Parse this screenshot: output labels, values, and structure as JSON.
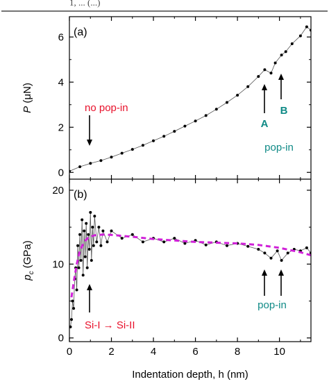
{
  "caption_fragment": "1, ... (...)",
  "colors": {
    "marker": "#000000",
    "red_label": "#e8102a",
    "teal_label": "#0f8a86",
    "fit_line": "#d020d8",
    "axis": "#000000"
  },
  "x_axis": {
    "label": "Indentation depth, h (nm)",
    "tick_labels": [
      "0",
      "2",
      "4",
      "6",
      "8",
      "10"
    ]
  },
  "chart_data": [
    {
      "type": "scatter",
      "panel_label": "(a)",
      "ylabel": "P (μN)",
      "xlim": [
        0,
        11.5
      ],
      "ylim": [
        -0.3,
        6.9
      ],
      "x_ticks": [
        0,
        2,
        4,
        6,
        8,
        10
      ],
      "y_ticks": [
        0,
        2,
        4,
        6
      ],
      "y_tick_labels": [
        "0",
        "2",
        "4",
        "6"
      ],
      "series": [
        {
          "x": [
            0,
            0.5,
            1,
            1.5,
            2,
            2.5,
            3,
            3.5,
            4,
            4.5,
            5,
            5.5,
            6,
            6.5,
            7,
            7.5,
            8,
            8.5,
            9,
            9.3,
            9.6,
            9.8,
            10.1,
            10.3,
            10.6,
            11,
            11.3,
            11.5
          ],
          "y": [
            0.05,
            0.25,
            0.4,
            0.52,
            0.68,
            0.85,
            1.02,
            1.2,
            1.4,
            1.6,
            1.82,
            2.05,
            2.28,
            2.52,
            2.8,
            3.1,
            3.42,
            3.8,
            4.25,
            4.55,
            4.4,
            4.85,
            5.2,
            5.35,
            5.7,
            6.05,
            6.45,
            6.3
          ]
        }
      ],
      "annotations": [
        {
          "text": "no pop-in",
          "x": 1.0,
          "y": 0.7,
          "color": "red"
        },
        {
          "text": "A",
          "x": 9.3,
          "y": 4.3,
          "color": "teal"
        },
        {
          "text": "B",
          "x": 10.1,
          "y": 5.0,
          "color": "teal"
        },
        {
          "text": "pop-in",
          "color": "teal"
        }
      ]
    },
    {
      "type": "line",
      "panel_label": "(b)",
      "ylabel": "p_c (GPa)",
      "xlim": [
        0,
        11.5
      ],
      "ylim": [
        -0.5,
        21.5
      ],
      "x_ticks": [
        0,
        2,
        4,
        6,
        8,
        10
      ],
      "y_ticks": [
        0,
        10,
        20
      ],
      "y_tick_labels": [
        "0",
        "10",
        "20"
      ],
      "series": [
        {
          "x": [
            0.05,
            0.1,
            0.15,
            0.2,
            0.25,
            0.3,
            0.35,
            0.4,
            0.45,
            0.5,
            0.55,
            0.6,
            0.65,
            0.7,
            0.75,
            0.8,
            0.85,
            0.9,
            0.95,
            1.0,
            1.05,
            1.1,
            1.15,
            1.2,
            1.3,
            1.4,
            1.5,
            1.6,
            1.8,
            2.0,
            2.5,
            3.0,
            3.5,
            4.0,
            4.5,
            5.0,
            5.5,
            6.0,
            6.5,
            7.0,
            7.5,
            8.0,
            8.5,
            9.0,
            9.3,
            9.6,
            9.9,
            10.1,
            10.4,
            10.7,
            11.0,
            11.3,
            11.5
          ],
          "y": [
            1.5,
            2.5,
            5.0,
            4.0,
            8.0,
            9.5,
            6.5,
            12.5,
            9.5,
            14.0,
            10.5,
            16.0,
            8.5,
            14.5,
            11.0,
            15.5,
            9.5,
            14.0,
            12.0,
            17.0,
            10.5,
            15.0,
            12.5,
            16.5,
            13.0,
            15.0,
            12.5,
            14.5,
            13.0,
            14.5,
            13.5,
            14.0,
            13.0,
            13.5,
            13.0,
            13.5,
            12.8,
            13.2,
            12.6,
            13.0,
            12.5,
            12.8,
            12.4,
            12.0,
            11.5,
            10.8,
            11.8,
            10.5,
            11.5,
            12.0,
            11.8,
            12.2,
            11.5
          ]
        },
        {
          "name": "fit",
          "x": [
            0.1,
            0.2,
            0.35,
            0.5,
            0.7,
            0.9,
            1.2,
            1.6,
            2.0,
            3.0,
            4.0,
            5.0,
            6.0,
            7.0,
            8.0,
            9.0,
            10.0,
            11.0,
            11.5
          ],
          "y": [
            5.5,
            7.5,
            10.0,
            11.8,
            13.0,
            13.6,
            13.9,
            14.0,
            13.95,
            13.7,
            13.4,
            13.2,
            13.0,
            12.9,
            12.8,
            12.6,
            12.2,
            11.6,
            11.2
          ]
        }
      ],
      "annotations": [
        {
          "text": "Si-I → Si-II",
          "x": 1.0,
          "y": 6.5,
          "color": "red"
        },
        {
          "text": "pop-in",
          "x1": 9.3,
          "x2": 10.1,
          "y": 9.5,
          "color": "teal"
        }
      ]
    }
  ]
}
